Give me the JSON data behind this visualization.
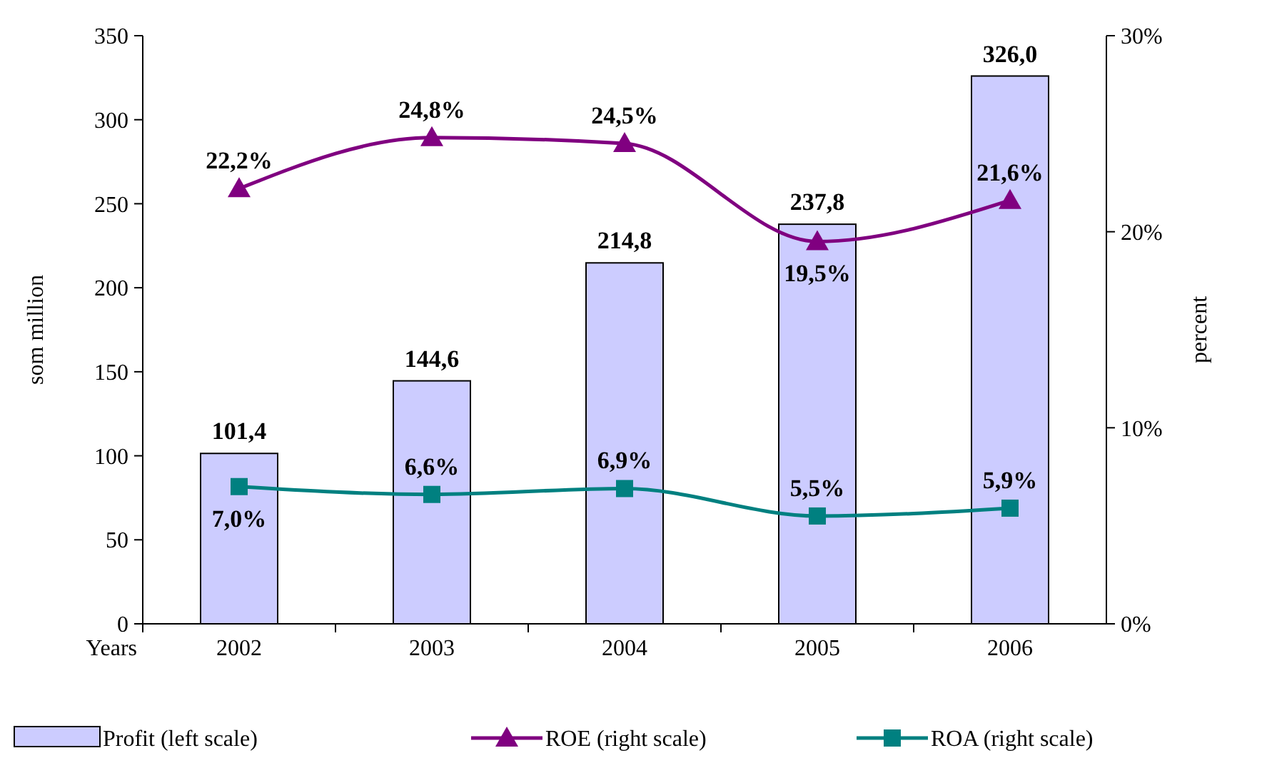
{
  "chart_data": {
    "type": "bar",
    "categories": [
      "2002",
      "2003",
      "2004",
      "2005",
      "2006"
    ],
    "xlabel": "Years",
    "ylabel": "som million",
    "y2label": "percent",
    "ylim": [
      0,
      350
    ],
    "yticks": [
      0,
      50,
      100,
      150,
      200,
      250,
      300,
      350
    ],
    "y2lim": [
      0,
      30
    ],
    "y2ticks": [
      {
        "value": 0,
        "label": "0%"
      },
      {
        "value": 10,
        "label": "10%"
      },
      {
        "value": 20,
        "label": "20%"
      },
      {
        "value": 30,
        "label": "30%"
      }
    ],
    "legend": "bottom",
    "series": [
      {
        "name": "Profit (left scale)",
        "color": "#ccccff",
        "values": [
          101.4,
          144.6,
          214.8,
          237.8,
          326.0
        ],
        "value_labels": [
          "101,4",
          "144,6",
          "214,8",
          "237,8",
          "326,0"
        ]
      },
      {
        "name": "ROE (right scale)",
        "type": "line",
        "axis": "y2",
        "color": "#800080",
        "marker": "triangle",
        "values": [
          22.2,
          24.8,
          24.5,
          19.5,
          21.6
        ],
        "value_labels": [
          "22,2%",
          "24,8%",
          "24,5%",
          "19,5%",
          "21,6%"
        ]
      },
      {
        "name": "ROA (right scale)",
        "type": "line",
        "axis": "y2",
        "color": "#008080",
        "marker": "square",
        "values": [
          7.0,
          6.6,
          6.9,
          5.5,
          5.9
        ],
        "value_labels": [
          "7,0%",
          "6,6%",
          "6,9%",
          "5,5%",
          "5,9%"
        ]
      }
    ]
  }
}
